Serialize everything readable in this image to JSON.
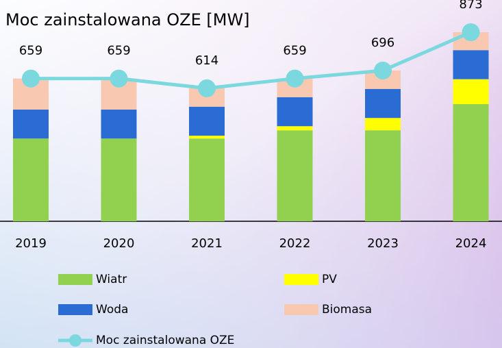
{
  "chart_data": {
    "type": "bar_line",
    "title": "Moc zainstalowana OZE [MW]",
    "categories": [
      "2019",
      "2020",
      "2021",
      "2022",
      "2023",
      "2024"
    ],
    "series": [
      {
        "name": "Wiatr",
        "color": "#92d050",
        "values": [
          382,
          382,
          382,
          420,
          420,
          541
        ]
      },
      {
        "name": "PV",
        "color": "#ffff00",
        "values": [
          0,
          0,
          13,
          19,
          57,
          115
        ]
      },
      {
        "name": "Woda",
        "color": "#2a6bd4",
        "values": [
          134,
          134,
          134,
          134,
          134,
          134
        ]
      },
      {
        "name": "Biomasa",
        "color": "#f8c9b0",
        "values": [
          143,
          143,
          85,
          86,
          85,
          83
        ]
      },
      {
        "name": "Moc zainstalowana OZE",
        "color": "#7ad8de",
        "type": "line",
        "values": [
          659,
          659,
          614,
          659,
          696,
          873
        ]
      }
    ]
  }
}
